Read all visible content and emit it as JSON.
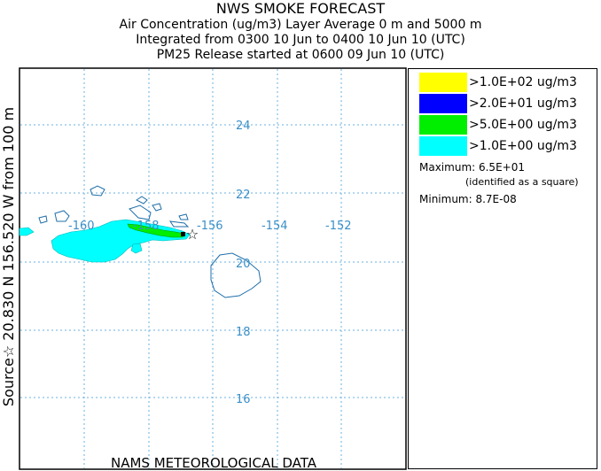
{
  "titles": {
    "main": "NWS SMOKE FORECAST",
    "line1": "Air Concentration (ug/m3) Layer Average    0 m and  5000 m",
    "line2": "Integrated from 0300 10 Jun to 0400 10 Jun 10 (UTC)",
    "line3": "PM25 Release started at 0600 09 Jun 10 (UTC)"
  },
  "source_label": "Source☆ 20.830  N 156.520  W     from   100 m",
  "bottom_label": "NAMS METEOROLOGICAL DATA",
  "map": {
    "lon_labels": [
      "-160",
      "-158",
      "-156",
      "-154",
      "-152"
    ],
    "lat_labels": [
      "24",
      "22",
      "20",
      "18",
      "16"
    ],
    "grid_color": "#6ab0e0",
    "label_color": "#3a8fc8",
    "coast_color": "#1f6fa8",
    "plume_colors": {
      "cyan": "#00ffff",
      "green": "#00dd00",
      "blue": "#0000ff",
      "yellow": "#ffff00"
    }
  },
  "legend": {
    "items": [
      {
        "color": "#ffff00",
        "label": ">1.0E+02 ug/m3"
      },
      {
        "color": "#0000ff",
        "label": ">2.0E+01 ug/m3"
      },
      {
        "color": "#00ee00",
        "label": ">5.0E+00 ug/m3"
      },
      {
        "color": "#00ffff",
        "label": ">1.0E+00 ug/m3"
      }
    ],
    "maximum": "Maximum: 6.5E+01",
    "max_note": "(identified as a square)",
    "minimum": "Minimum: 8.7E-08"
  }
}
